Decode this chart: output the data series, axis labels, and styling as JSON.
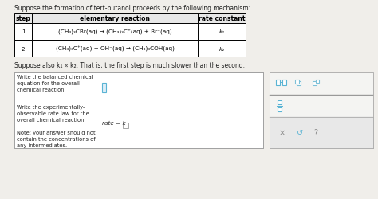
{
  "bg_color": "#f0eeea",
  "title_text": "Suppose the formation of tert-butanol proceeds by the following mechanism:",
  "table_headers": [
    "step",
    "elementary reaction",
    "rate constant"
  ],
  "table_row1_step": "1",
  "table_row1_rxn": "(CH₃)₃CBr(aq) → (CH₃)₃C⁺(aq) + Br⁻(aq)",
  "table_row1_k": "k₁",
  "table_row2_step": "2",
  "table_row2_rxn": "(CH₃)₃C⁺(aq) + OH⁻(aq) → (CH₃)₃COH(aq)",
  "table_row2_k": "k₂",
  "suppose_text": "Suppose also k₁ « k₂. That is, the first step is much slower than the second.",
  "box1_label": "Write the balanced chemical\nequation for the overall\nchemical reaction.",
  "box2_label": "Write the experimentally-\nobservable rate law for the\noverall chemical reaction.\n\nNote: your answer should not\ncontain the concentrations of\nany intermediates.",
  "rate_text": "rate = k",
  "icon_color": "#5ab4d4",
  "icon_color2": "#7cc0d8",
  "sidebar_bg": "#f0f0f0",
  "white": "#ffffff",
  "table_bg": "#e8e8e8",
  "border_color": "#999999",
  "text_color": "#222222"
}
